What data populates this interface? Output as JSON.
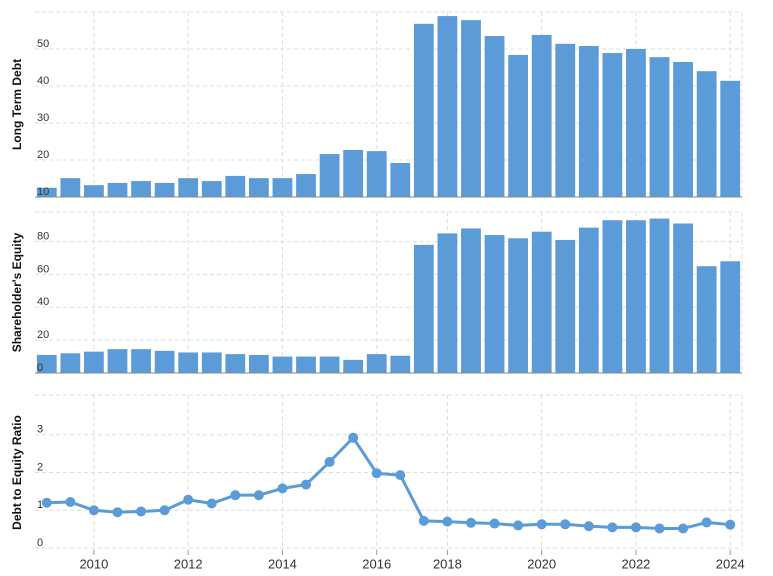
{
  "chart_data": [
    {
      "type": "bar",
      "y_label": "Long Term Debt",
      "color": "#5b9bd8",
      "values": [
        12.5,
        15.1,
        13.2,
        13.8,
        14.3,
        13.8,
        15.1,
        14.3,
        15.7,
        15.1,
        15.1,
        16.2,
        21.6,
        22.7,
        22.4,
        19.2,
        56.8,
        58.9,
        57.8,
        53.5,
        48.4,
        53.8,
        51.4,
        50.8,
        48.9,
        50,
        47.8,
        46.5,
        44,
        41.4
      ],
      "ylim": [
        10,
        60
      ],
      "yticks": [
        10,
        20,
        30,
        40,
        50
      ],
      "grid": true
    },
    {
      "type": "bar",
      "y_label": "Shareholder's Equity",
      "color": "#5b9bd8",
      "values": [
        11,
        12,
        13,
        14.5,
        14.5,
        13.5,
        12.5,
        12.5,
        11.5,
        11,
        10,
        10,
        10,
        8,
        11.5,
        10.5,
        78,
        85,
        88,
        84,
        82,
        86,
        81,
        88.5,
        93,
        93,
        94,
        91,
        65,
        68
      ],
      "ylim": [
        0,
        98
      ],
      "yticks": [
        0,
        20,
        40,
        60,
        80
      ],
      "grid": true
    },
    {
      "type": "line",
      "y_label": "Debt to Equity Ratio",
      "color": "#5b9bd8",
      "categories": [
        null,
        null,
        "2010",
        null,
        null,
        null,
        "2012",
        null,
        null,
        null,
        "2014",
        null,
        null,
        null,
        "2016",
        null,
        null,
        "2018",
        null,
        null,
        null,
        "2020",
        null,
        null,
        null,
        "2022",
        null,
        null,
        null,
        "2024"
      ],
      "values": [
        1.2,
        1.22,
        1.0,
        0.95,
        0.97,
        1.0,
        1.28,
        1.18,
        1.4,
        1.4,
        1.58,
        1.68,
        2.28,
        2.92,
        1.98,
        1.93,
        0.72,
        0.7,
        0.67,
        0.65,
        0.6,
        0.63,
        0.63,
        0.58,
        0.55,
        0.55,
        0.52,
        0.52,
        0.68,
        0.62
      ],
      "ylim": [
        -0.05,
        4.05
      ],
      "yticks": [
        0,
        1,
        2,
        3
      ],
      "grid": true
    }
  ]
}
